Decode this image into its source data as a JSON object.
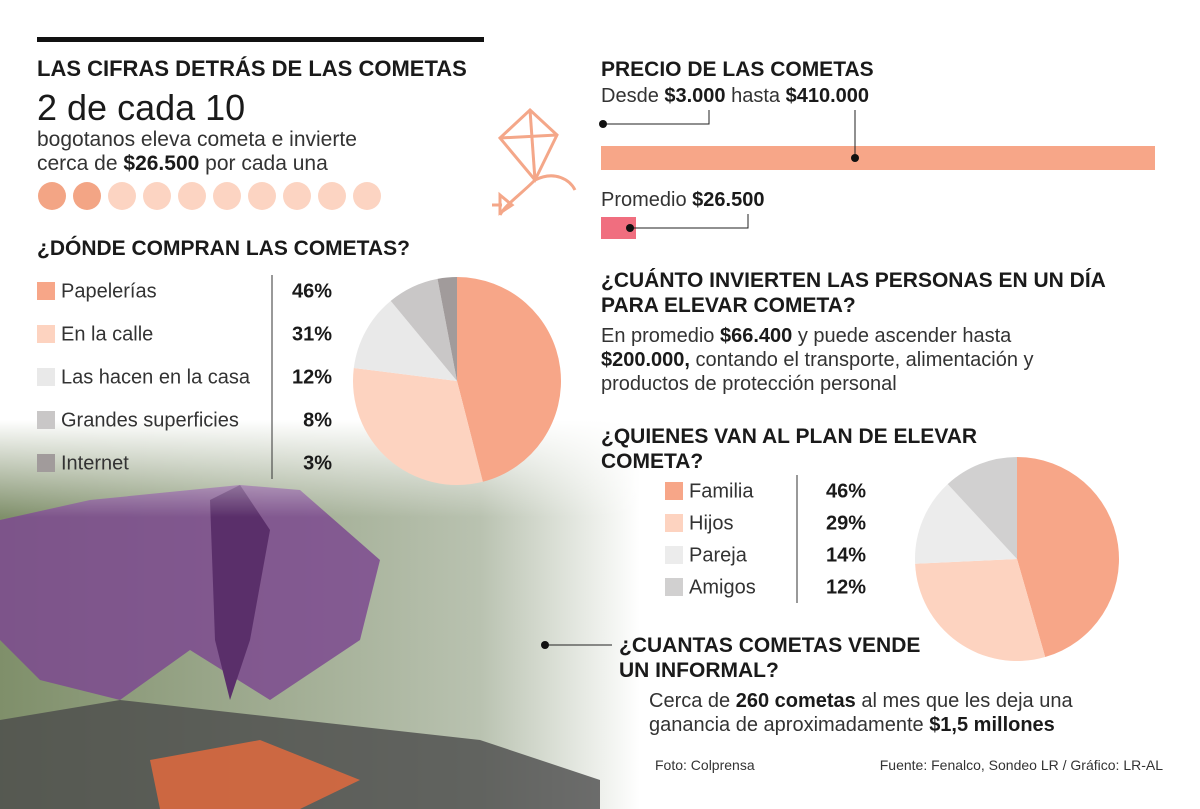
{
  "header": {
    "title": "LAS CIFRAS DETRÁS DE LAS COMETAS",
    "headline": "2 de cada 10",
    "text": [
      "bogotanos eleva cometa e invierte cerca de ",
      "$26.500",
      " por cada una"
    ]
  },
  "price": {
    "title": "PRECIO DE LAS COMETAS",
    "range": [
      "Desde ",
      "$3.000",
      " hasta ",
      "$410.000"
    ],
    "average": [
      "Promedio ",
      "$26.500"
    ]
  },
  "investment": {
    "title": "¿CUÁNTO INVIERTEN LAS PERSONAS EN UN DÍA PARA ELEVAR COMETA?",
    "text": [
      "En promedio ",
      "$66.400",
      " y puede ascender hasta ",
      "$200.000,",
      " contando el transporte, alimentación y productos de protección personal"
    ]
  },
  "informal": {
    "title": "¿CUANTAS COMETAS VENDE UN INFORMAL?",
    "text": [
      "Cerca de ",
      "260 cometas",
      " al mes que les deja una ganancia de aproximadamente ",
      "$1,5 millones"
    ]
  },
  "chart_data": [
    {
      "type": "pie",
      "title": "¿DÓNDE COMPRAN LAS COMETAS?",
      "categories": [
        "Papelerías",
        "En la calle",
        "Las hacen en la casa",
        "Grandes superficies",
        "Internet"
      ],
      "values": [
        46,
        31,
        12,
        8,
        3
      ],
      "value_labels": [
        "46%",
        "31%",
        "12%",
        "8%",
        "3%"
      ],
      "colors": [
        "#f7a688",
        "#fdd3c0",
        "#e9e9e9",
        "#c9c7c7",
        "#a19b9b"
      ]
    },
    {
      "type": "pie",
      "title": "¿QUIENES VAN AL PLAN DE ELEVAR COMETA?",
      "categories": [
        "Familia",
        "Hijos",
        "Pareja",
        "Amigos"
      ],
      "values": [
        46,
        29,
        14,
        12
      ],
      "value_labels": [
        "46%",
        "29%",
        "14%",
        "12%"
      ],
      "colors": [
        "#f7a688",
        "#fdd3c0",
        "#ececec",
        "#d1d0d0"
      ]
    }
  ],
  "footer": {
    "photo": "Foto: Colprensa",
    "source": "Fuente: Fenalco, Sondeo LR / Gráfico: LR-AL"
  }
}
